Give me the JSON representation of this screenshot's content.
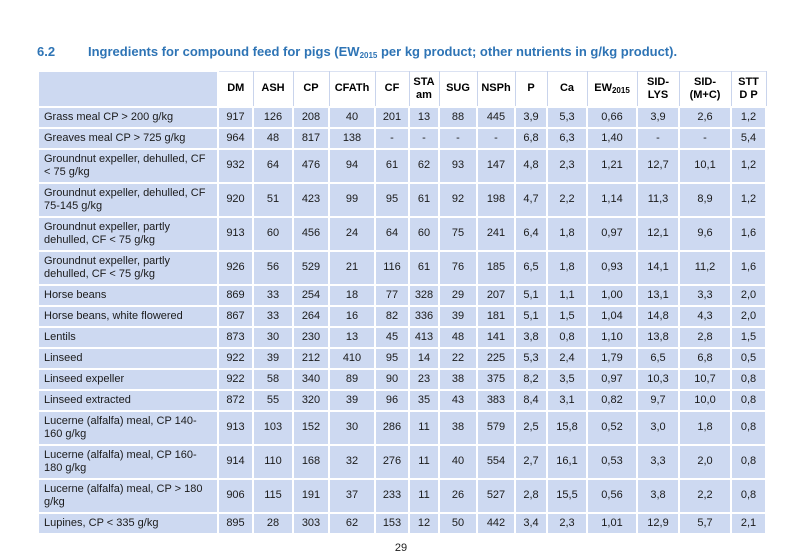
{
  "heading": {
    "number": "6.2",
    "title_pre": "Ingredients for compound feed for pigs (EW",
    "title_sub": "2015",
    "title_post": " per kg product; other nutrients in g/kg product)."
  },
  "footer": {
    "page_number": "29"
  },
  "colors": {
    "accent_blue": "#2e74b5",
    "cell_fill": "#cdd9f1",
    "header_fill": "#ffffff",
    "grid_line": "#ffffff",
    "header_grid_line": "#c9d4ec",
    "text": "#1b1b1b"
  },
  "table": {
    "columns": [
      {
        "label": "DM"
      },
      {
        "label": "ASH"
      },
      {
        "label": "CP"
      },
      {
        "label": "CFATh"
      },
      {
        "label": "CF"
      },
      {
        "label": "STA\nam"
      },
      {
        "label": "SUG"
      },
      {
        "label": "NSPh"
      },
      {
        "label": "P"
      },
      {
        "label": "Ca"
      },
      {
        "label": "EW",
        "sub": "2015"
      },
      {
        "label": "SID-\nLYS"
      },
      {
        "label": "SID-\n(M+C)"
      },
      {
        "label": "STT\nD P"
      }
    ],
    "rows": [
      {
        "name": "Grass meal CP > 200 g/kg",
        "values": [
          "917",
          "126",
          "208",
          "40",
          "201",
          "13",
          "88",
          "445",
          "3,9",
          "5,3",
          "0,66",
          "3,9",
          "2,6",
          "1,2"
        ]
      },
      {
        "name": "Greaves meal CP > 725 g/kg",
        "values": [
          "964",
          "48",
          "817",
          "138",
          "-",
          "-",
          "-",
          "-",
          "6,8",
          "6,3",
          "1,40",
          "-",
          "-",
          "5,4"
        ]
      },
      {
        "name": "Groundnut expeller, dehulled, CF < 75 g/kg",
        "values": [
          "932",
          "64",
          "476",
          "94",
          "61",
          "62",
          "93",
          "147",
          "4,8",
          "2,3",
          "1,21",
          "12,7",
          "10,1",
          "1,2"
        ]
      },
      {
        "name": "Groundnut expeller, dehulled, CF 75-145 g/kg",
        "values": [
          "920",
          "51",
          "423",
          "99",
          "95",
          "61",
          "92",
          "198",
          "4,7",
          "2,2",
          "1,14",
          "11,3",
          "8,9",
          "1,2"
        ]
      },
      {
        "name": "Groundnut expeller, partly dehulled, CF < 75 g/kg",
        "values": [
          "913",
          "60",
          "456",
          "24",
          "64",
          "60",
          "75",
          "241",
          "6,4",
          "1,8",
          "0,97",
          "12,1",
          "9,6",
          "1,6"
        ]
      },
      {
        "name": "Groundnut expeller, partly dehulled, CF < 75 g/kg",
        "values": [
          "926",
          "56",
          "529",
          "21",
          "116",
          "61",
          "76",
          "185",
          "6,5",
          "1,8",
          "0,93",
          "14,1",
          "11,2",
          "1,6"
        ]
      },
      {
        "name": "Horse beans",
        "values": [
          "869",
          "33",
          "254",
          "18",
          "77",
          "328",
          "29",
          "207",
          "5,1",
          "1,1",
          "1,00",
          "13,1",
          "3,3",
          "2,0"
        ]
      },
      {
        "name": "Horse beans, white flowered",
        "values": [
          "867",
          "33",
          "264",
          "16",
          "82",
          "336",
          "39",
          "181",
          "5,1",
          "1,5",
          "1,04",
          "14,8",
          "4,3",
          "2,0"
        ]
      },
      {
        "name": "Lentils",
        "values": [
          "873",
          "30",
          "230",
          "13",
          "45",
          "413",
          "48",
          "141",
          "3,8",
          "0,8",
          "1,10",
          "13,8",
          "2,8",
          "1,5"
        ]
      },
      {
        "name": "Linseed",
        "values": [
          "922",
          "39",
          "212",
          "410",
          "95",
          "14",
          "22",
          "225",
          "5,3",
          "2,4",
          "1,79",
          "6,5",
          "6,8",
          "0,5"
        ]
      },
      {
        "name": "Linseed expeller",
        "values": [
          "922",
          "58",
          "340",
          "89",
          "90",
          "23",
          "38",
          "375",
          "8,2",
          "3,5",
          "0,97",
          "10,3",
          "10,7",
          "0,8"
        ]
      },
      {
        "name": "Linseed extracted",
        "values": [
          "872",
          "55",
          "320",
          "39",
          "96",
          "35",
          "43",
          "383",
          "8,4",
          "3,1",
          "0,82",
          "9,7",
          "10,0",
          "0,8"
        ]
      },
      {
        "name": "Lucerne (alfalfa) meal, CP 140-160 g/kg",
        "values": [
          "913",
          "103",
          "152",
          "30",
          "286",
          "11",
          "38",
          "579",
          "2,5",
          "15,8",
          "0,52",
          "3,0",
          "1,8",
          "0,8"
        ]
      },
      {
        "name": "Lucerne (alfalfa) meal, CP 160-180 g/kg",
        "values": [
          "914",
          "110",
          "168",
          "32",
          "276",
          "11",
          "40",
          "554",
          "2,7",
          "16,1",
          "0,53",
          "3,3",
          "2,0",
          "0,8"
        ]
      },
      {
        "name": "Lucerne (alfalfa) meal, CP > 180 g/kg",
        "values": [
          "906",
          "115",
          "191",
          "37",
          "233",
          "11",
          "26",
          "527",
          "2,8",
          "15,5",
          "0,56",
          "3,8",
          "2,2",
          "0,8"
        ]
      },
      {
        "name": "Lupines, CP < 335 g/kg",
        "values": [
          "895",
          "28",
          "303",
          "62",
          "153",
          "12",
          "50",
          "442",
          "3,4",
          "2,3",
          "1,01",
          "12,9",
          "5,7",
          "2,1"
        ]
      }
    ]
  }
}
